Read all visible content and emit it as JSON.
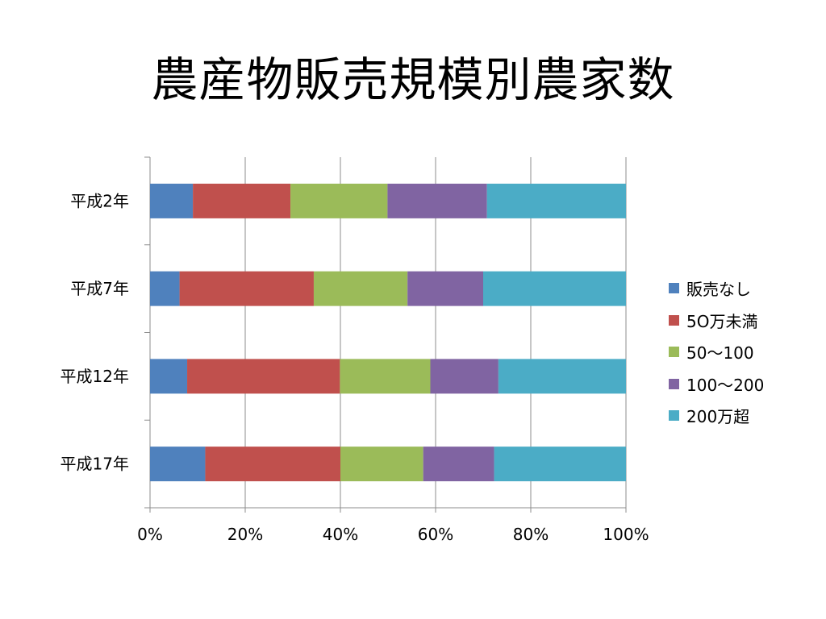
{
  "slide": {
    "title": "農産物販売規模別農家数"
  },
  "chart_data": {
    "type": "bar",
    "orientation": "horizontal",
    "stacked": "percent",
    "title": "",
    "xlabel": "",
    "ylabel": "",
    "xlim": [
      0,
      100
    ],
    "x_ticks": [
      "0%",
      "20%",
      "40%",
      "60%",
      "80%",
      "100%"
    ],
    "grid": true,
    "legend_position": "right",
    "categories": [
      "平成2年",
      "平成7年",
      "平成12年",
      "平成17年"
    ],
    "series": [
      {
        "name": "販売なし",
        "color": "#4F81BD",
        "values": [
          9.0,
          6.2,
          7.8,
          11.6
        ]
      },
      {
        "name": "5O万未満",
        "color": "#C0504D",
        "values": [
          20.5,
          28.2,
          32.1,
          28.4
        ]
      },
      {
        "name": "50〜100",
        "color": "#9BBB59",
        "values": [
          20.4,
          19.7,
          19.0,
          17.4
        ]
      },
      {
        "name": "100〜200",
        "color": "#8064A2",
        "values": [
          20.9,
          15.9,
          14.3,
          14.9
        ]
      },
      {
        "name": "200万超",
        "color": "#4BACC6",
        "values": [
          29.2,
          30.0,
          26.8,
          27.7
        ]
      }
    ]
  }
}
